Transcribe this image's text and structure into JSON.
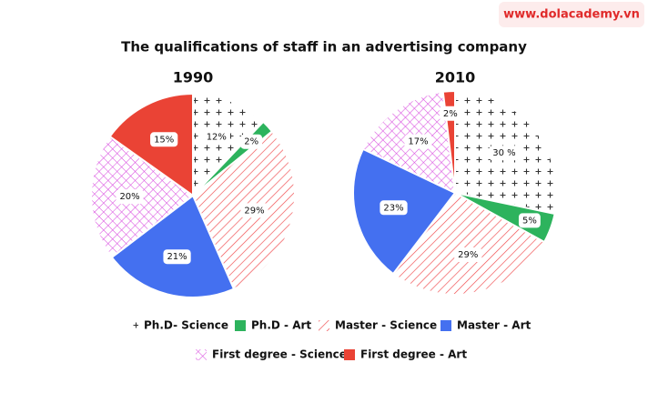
{
  "watermark": "www.dolacademy.vn",
  "title": "The qualifications of staff in an advertising company",
  "chart_data": [
    {
      "type": "pie",
      "title": "1990",
      "categories": [
        "Ph.D- Science",
        "Ph.D - Art",
        "Master - Science",
        "Master - Art",
        "First degree - Science",
        "First degree - Art"
      ],
      "values": [
        12,
        2,
        29,
        21,
        20,
        15
      ],
      "value_labels": [
        "12%",
        "2%",
        "29%",
        "21%",
        "20%",
        "15%"
      ],
      "colors": [
        "#333333",
        "#2db35d",
        "#f0474a",
        "#4470f0",
        "#d94ee0",
        "#ea4335"
      ],
      "patterns": [
        "plus",
        "solid",
        "hatch",
        "solid",
        "crosshatch",
        "solid"
      ]
    },
    {
      "type": "pie",
      "title": "2010",
      "categories": [
        "Ph.D- Science",
        "Ph.D - Art",
        "Master - Science",
        "Master - Art",
        "First degree - Science",
        "First degree - Art"
      ],
      "values": [
        30,
        5,
        29,
        23,
        17,
        2
      ],
      "value_labels": [
        "30 %",
        "5%",
        "29%",
        "23%",
        "17%",
        "2%"
      ],
      "colors": [
        "#333333",
        "#2db35d",
        "#f0474a",
        "#4470f0",
        "#d94ee0",
        "#ea4335"
      ],
      "patterns": [
        "plus",
        "solid",
        "hatch",
        "solid",
        "crosshatch",
        "solid"
      ]
    }
  ]
}
